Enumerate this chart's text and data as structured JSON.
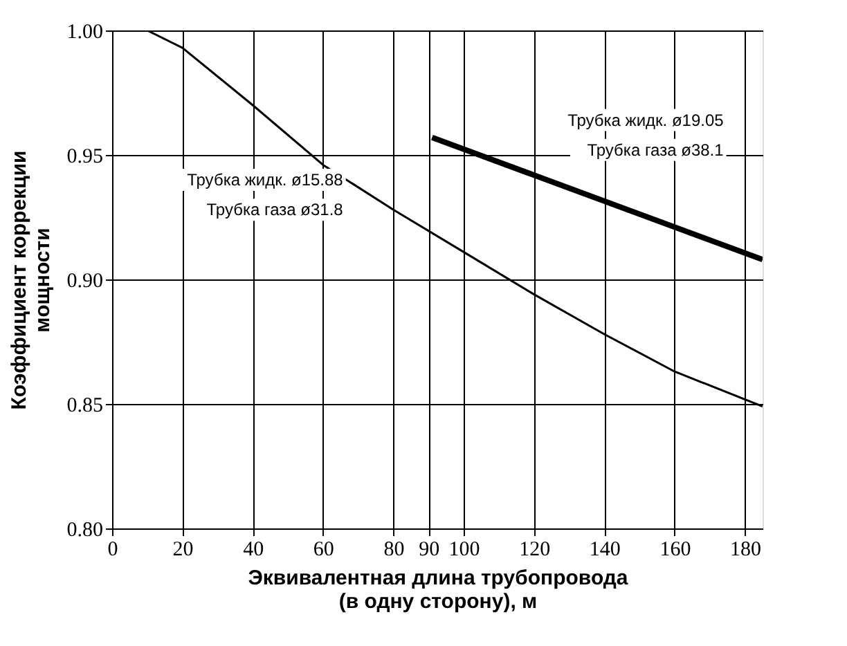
{
  "chart_data": {
    "type": "line",
    "xlabel": "Эквивалентная длина трубопровода\n(в одну сторону), м",
    "ylabel": "Коэффициент коррекции\nмощности",
    "xlim": [
      0,
      185
    ],
    "xticks": [
      0,
      20,
      40,
      60,
      80,
      90,
      100,
      120,
      140,
      160,
      180
    ],
    "ylim": [
      0.8,
      1.0
    ],
    "yticks": [
      {
        "value": 0.8,
        "label": "0.80"
      },
      0.85,
      {
        "value": 0.9,
        "label": "0.90"
      },
      0.95,
      {
        "value": 1.0,
        "label": "1.00"
      }
    ],
    "grid": true,
    "series": [
      {
        "color": "#000000",
        "x": [
          10,
          20,
          40,
          60,
          80,
          100,
          120,
          140,
          160,
          185
        ],
        "values": [
          1.0,
          0.993,
          0.97,
          0.946,
          0.928,
          0.911,
          0.894,
          0.878,
          0.863,
          0.849
        ]
      },
      {
        "color": "#000000",
        "x": [
          91,
          185
        ],
        "values": [
          0.957,
          0.908
        ]
      }
    ],
    "annotations": [
      "Трубка жидк. ø15.88",
      "Трубка газа ø31.8",
      "Трубка жидк. ø19.05",
      "Трубка газа ø38.1"
    ]
  }
}
